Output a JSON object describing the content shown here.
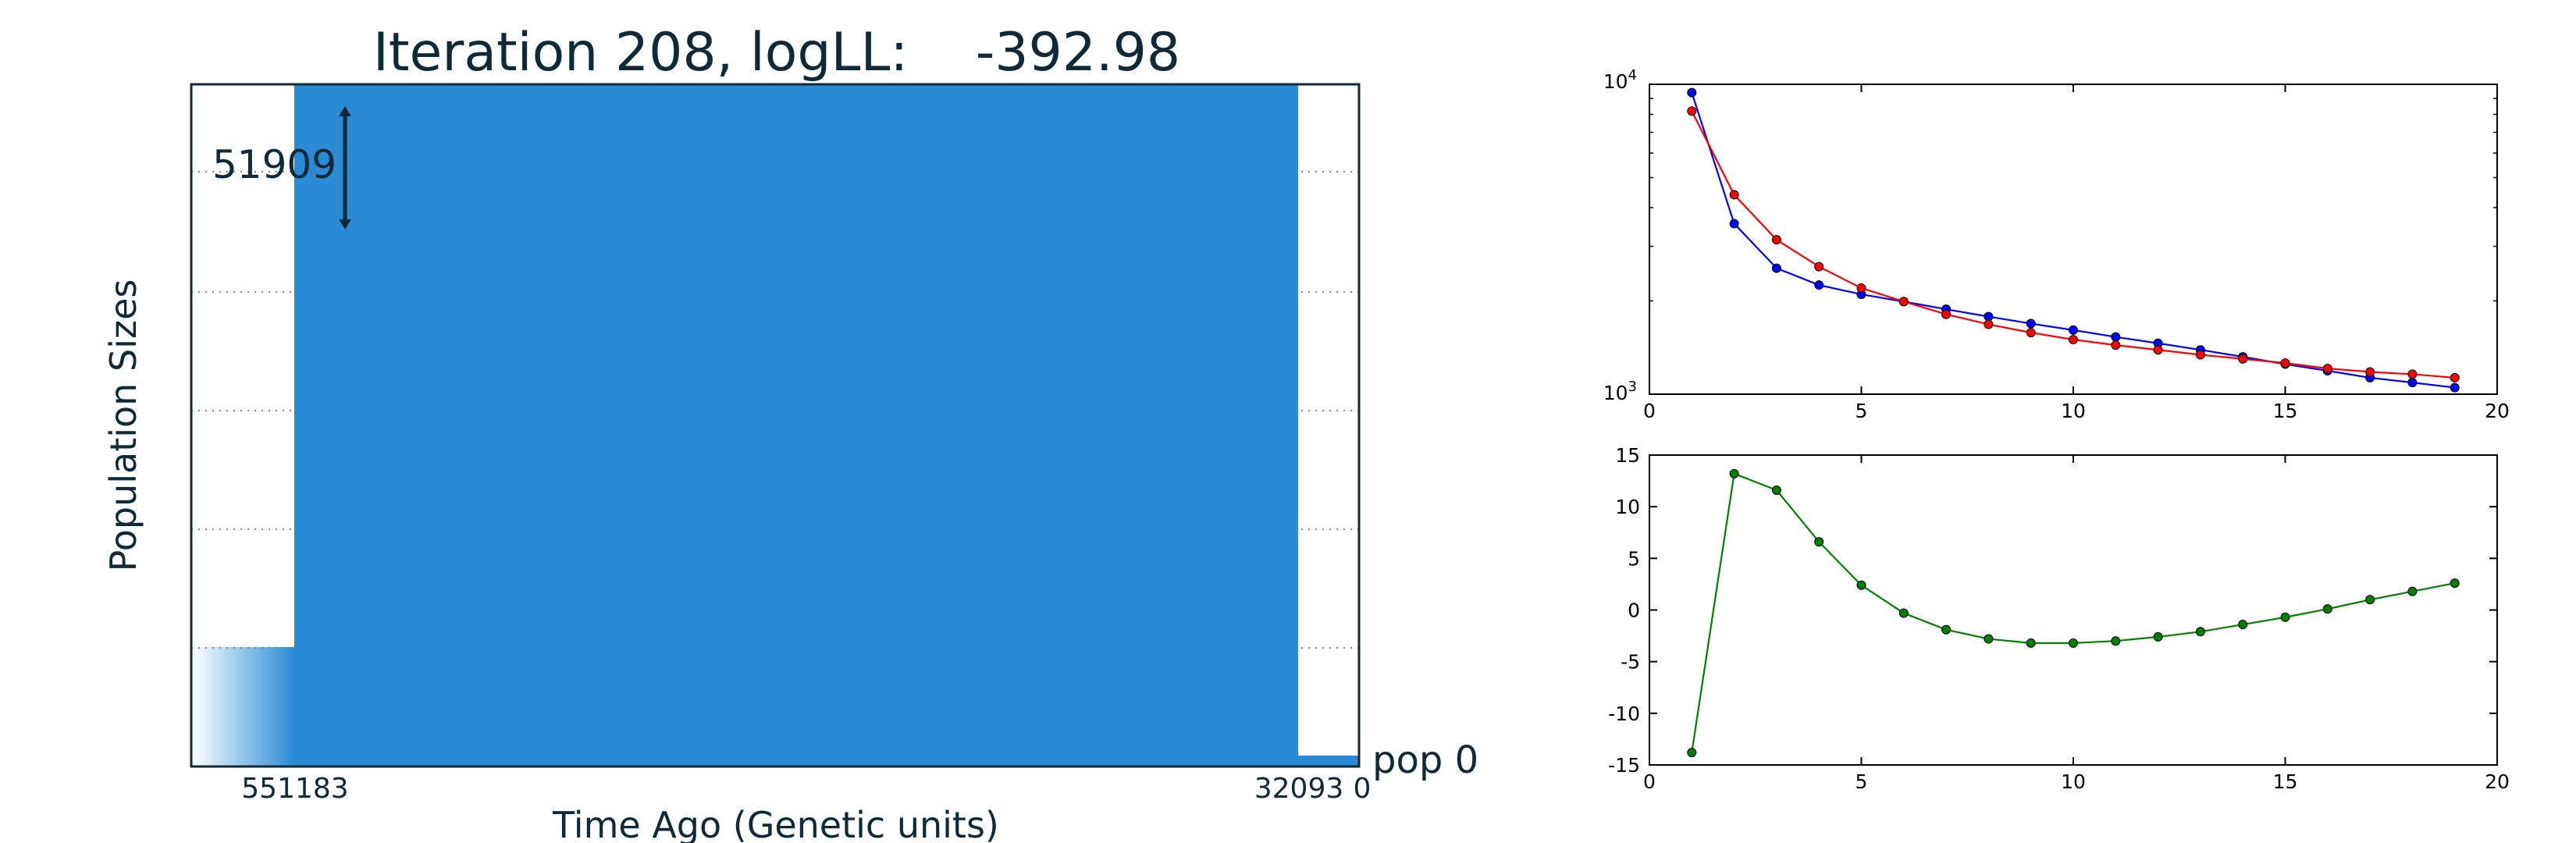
{
  "chart_data": [
    {
      "type": "area",
      "title": "Iteration 208, logLL:    -392.98",
      "xlabel": "Time Ago (Genetic units)",
      "ylabel": "Population Sizes",
      "x_tick_labels": [
        "551183",
        "32093",
        "0"
      ],
      "series": [
        {
          "name": "pop 0",
          "color": "#2a8bd4",
          "segments": [
            {
              "time_from": 0,
              "time_to": 32093,
              "size": 2000
            },
            {
              "time_from": 32093,
              "time_to": 551183,
              "size": 51909
            },
            {
              "time_from": 551183,
              "time_to": null,
              "size": 10000
            }
          ]
        }
      ],
      "scale_bar_label": "51909",
      "grid": "dotted horizontal"
    },
    {
      "type": "line",
      "yscale": "log",
      "xlim": [
        0,
        20
      ],
      "ylim": [
        1000,
        10000
      ],
      "x_ticks": [
        "0",
        "5",
        "10",
        "15",
        "20"
      ],
      "y_ticks": [
        {
          "base": "10",
          "exp": "3"
        },
        {
          "base": "10",
          "exp": "4"
        }
      ],
      "x": [
        1,
        2,
        3,
        4,
        5,
        6,
        7,
        8,
        9,
        10,
        11,
        12,
        13,
        14,
        15,
        16,
        17,
        18,
        19
      ],
      "series": [
        {
          "color": "#0000ff",
          "values": [
            9400,
            3550,
            2550,
            2250,
            2100,
            1990,
            1880,
            1780,
            1690,
            1610,
            1530,
            1460,
            1390,
            1320,
            1250,
            1190,
            1130,
            1090,
            1050
          ]
        },
        {
          "color": "#ff0000",
          "values": [
            8200,
            4400,
            3150,
            2580,
            2200,
            1990,
            1810,
            1680,
            1580,
            1500,
            1440,
            1390,
            1340,
            1300,
            1260,
            1210,
            1180,
            1160,
            1130
          ]
        }
      ]
    },
    {
      "type": "line",
      "xlim": [
        0,
        20
      ],
      "ylim": [
        -15,
        15
      ],
      "x_ticks": [
        "0",
        "5",
        "10",
        "15",
        "20"
      ],
      "y_ticks": [
        "15",
        "10",
        "5",
        "0",
        "-5",
        "-10",
        "-15"
      ],
      "x": [
        1,
        2,
        3,
        4,
        5,
        6,
        7,
        8,
        9,
        10,
        11,
        12,
        13,
        14,
        15,
        16,
        17,
        18,
        19
      ],
      "series": [
        {
          "color": "#007f00",
          "values": [
            -13.8,
            13.2,
            11.6,
            6.6,
            2.4,
            -0.3,
            -1.9,
            -2.8,
            -3.2,
            -3.2,
            -3.0,
            -2.6,
            -2.1,
            -1.4,
            -0.7,
            0.1,
            1.0,
            1.8,
            2.6
          ]
        }
      ]
    }
  ]
}
